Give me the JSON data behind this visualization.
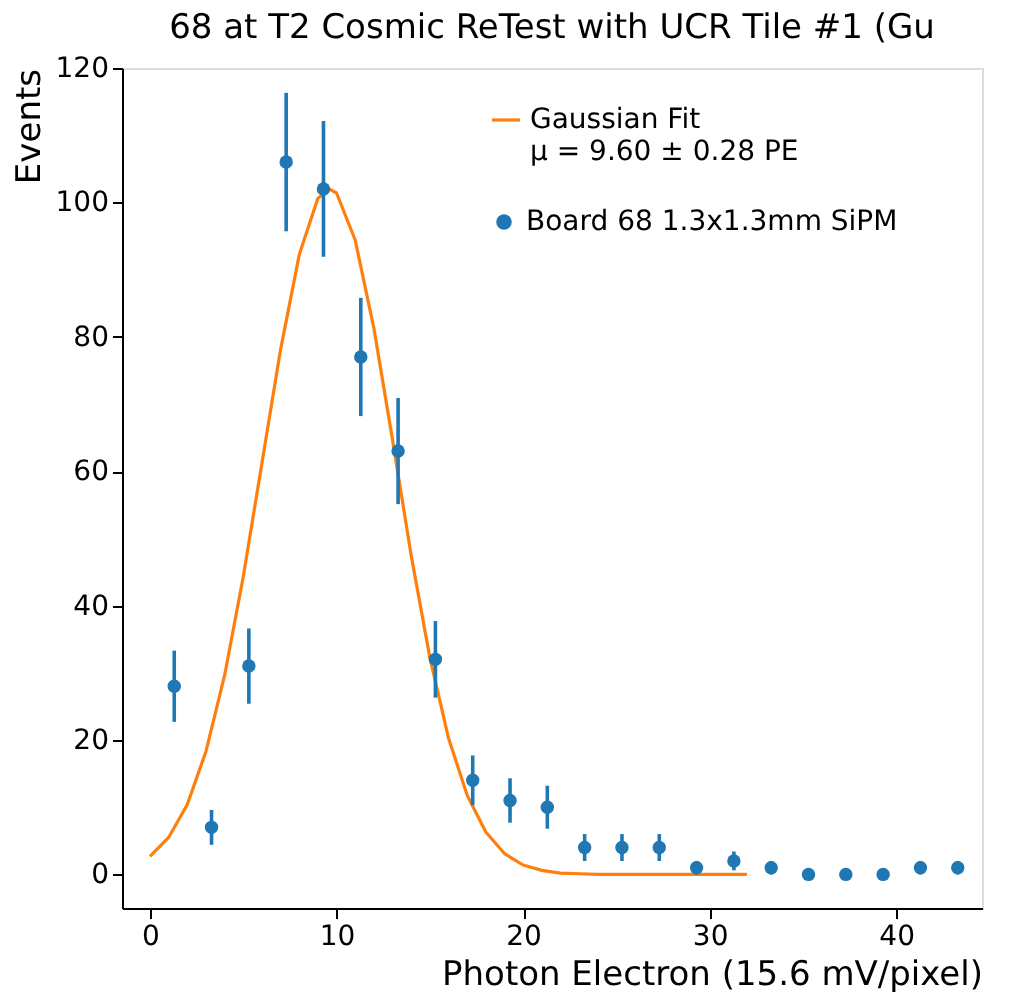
{
  "chart_data": {
    "type": "scatter",
    "title": "68 at T2 Cosmic ReTest with UCR Tile #1 (Gu",
    "xlabel": "Photon Electron (15.6 mV/pixel)",
    "ylabel": "Events",
    "xlim": [
      -1.5,
      44.6
    ],
    "ylim": [
      -5,
      120
    ],
    "xticks": [
      0,
      10,
      20,
      30,
      40
    ],
    "yticks": [
      0,
      20,
      40,
      60,
      80,
      100,
      120
    ],
    "grid": false,
    "legend": "top right",
    "marker": "circle",
    "annotations": [
      "μ = 9.60 ± 0.28 PE"
    ],
    "series": [
      {
        "name": "Gaussian Fit",
        "type": "line",
        "marker": "none",
        "color": "#ff7f0e",
        "line_style": "solid",
        "x": [
          0,
          1,
          2,
          3,
          4,
          5,
          6,
          7,
          8,
          9,
          9.6,
          10,
          11,
          12,
          13,
          14,
          15,
          16,
          17,
          18,
          19,
          20,
          21,
          22,
          23,
          24,
          32
        ],
        "values": [
          2.7,
          5.5,
          10.4,
          18.3,
          29.6,
          44.3,
          61.2,
          78.1,
          92.2,
          100.6,
          102,
          101.4,
          94.4,
          81.3,
          64.7,
          47.5,
          32.3,
          20.3,
          11.8,
          6.3,
          3.1,
          1.4,
          0.6,
          0.2,
          0.1,
          0,
          0
        ]
      },
      {
        "name": "Board 68 1.3x1.3mm SiPM",
        "color": "#1f77b4",
        "x": [
          1.3,
          3.3,
          5.3,
          7.3,
          9.3,
          11.3,
          13.3,
          15.3,
          17.3,
          19.3,
          21.3,
          23.3,
          25.3,
          27.3,
          29.3,
          31.3,
          33.3,
          35.3,
          37.3,
          39.3,
          41.3,
          43.3
        ],
        "values": [
          28,
          7,
          31,
          106,
          102,
          77,
          63,
          32,
          14,
          11,
          10,
          4,
          4,
          4,
          1,
          2,
          1,
          0,
          0,
          0,
          1,
          1
        ],
        "errors": [
          5.3,
          2.6,
          5.6,
          10.3,
          10.1,
          8.8,
          7.9,
          5.7,
          3.7,
          3.3,
          3.2,
          2,
          2,
          2,
          1,
          1.4,
          1,
          null,
          null,
          null,
          1,
          1
        ]
      }
    ]
  }
}
